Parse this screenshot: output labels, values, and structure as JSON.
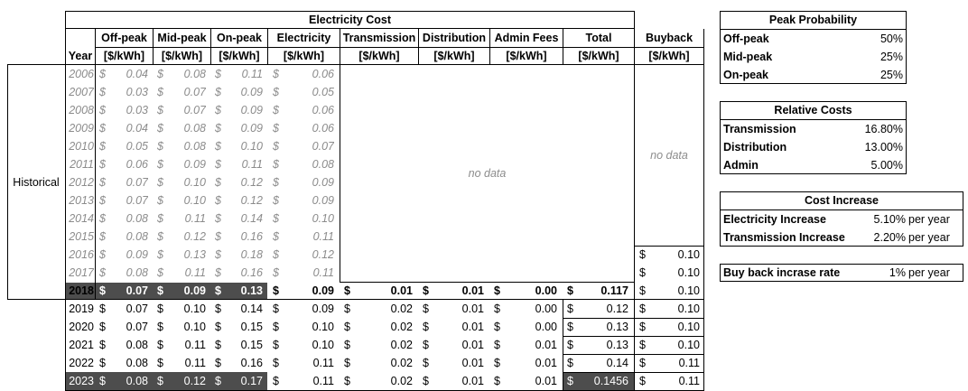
{
  "main": {
    "title": "Electricity Cost",
    "headers": {
      "year": "Year",
      "offpeak": "Off-peak",
      "midpeak": "Mid-peak",
      "onpeak": "On-peak",
      "electricity": "Electricity",
      "transmission": "Transmission",
      "distribution": "Distribution",
      "admin": "Admin Fees",
      "total": "Total",
      "buyback": "Buyback",
      "unit": "[$/kWh]"
    },
    "historical_label": "Historical",
    "no_data_label": "no data",
    "currency": "$",
    "historical_rows": [
      {
        "year": "2006",
        "off": "0.04",
        "mid": "0.08",
        "on": "0.11",
        "elec": "0.06"
      },
      {
        "year": "2007",
        "off": "0.03",
        "mid": "0.07",
        "on": "0.09",
        "elec": "0.05"
      },
      {
        "year": "2008",
        "off": "0.03",
        "mid": "0.07",
        "on": "0.09",
        "elec": "0.06"
      },
      {
        "year": "2009",
        "off": "0.04",
        "mid": "0.08",
        "on": "0.09",
        "elec": "0.06"
      },
      {
        "year": "2010",
        "off": "0.05",
        "mid": "0.08",
        "on": "0.10",
        "elec": "0.07"
      },
      {
        "year": "2011",
        "off": "0.06",
        "mid": "0.09",
        "on": "0.11",
        "elec": "0.08"
      },
      {
        "year": "2012",
        "off": "0.07",
        "mid": "0.10",
        "on": "0.12",
        "elec": "0.09"
      },
      {
        "year": "2013",
        "off": "0.07",
        "mid": "0.10",
        "on": "0.12",
        "elec": "0.09"
      },
      {
        "year": "2014",
        "off": "0.08",
        "mid": "0.11",
        "on": "0.14",
        "elec": "0.10"
      },
      {
        "year": "2015",
        "off": "0.08",
        "mid": "0.12",
        "on": "0.16",
        "elec": "0.11"
      },
      {
        "year": "2016",
        "off": "0.09",
        "mid": "0.13",
        "on": "0.18",
        "elec": "0.12",
        "buyback": "0.10"
      },
      {
        "year": "2017",
        "off": "0.08",
        "mid": "0.11",
        "on": "0.16",
        "elec": "0.11",
        "buyback": "0.10"
      }
    ],
    "current_row": {
      "year": "2018",
      "off": "0.07",
      "mid": "0.09",
      "on": "0.13",
      "elec": "0.09",
      "trans": "0.01",
      "dist": "0.01",
      "admin": "0.00",
      "total": "0.117",
      "buyback": "0.10"
    },
    "forecast_rows": [
      {
        "year": "2019",
        "off": "0.07",
        "mid": "0.10",
        "on": "0.14",
        "elec": "0.09",
        "trans": "0.02",
        "dist": "0.01",
        "admin": "0.00",
        "total": "0.12",
        "buyback": "0.10"
      },
      {
        "year": "2020",
        "off": "0.07",
        "mid": "0.10",
        "on": "0.15",
        "elec": "0.10",
        "trans": "0.02",
        "dist": "0.01",
        "admin": "0.00",
        "total": "0.13",
        "buyback": "0.10"
      },
      {
        "year": "2021",
        "off": "0.08",
        "mid": "0.11",
        "on": "0.15",
        "elec": "0.10",
        "trans": "0.02",
        "dist": "0.01",
        "admin": "0.01",
        "total": "0.13",
        "buyback": "0.10"
      },
      {
        "year": "2022",
        "off": "0.08",
        "mid": "0.11",
        "on": "0.16",
        "elec": "0.11",
        "trans": "0.02",
        "dist": "0.01",
        "admin": "0.01",
        "total": "0.14",
        "buyback": "0.11"
      },
      {
        "year": "2023",
        "off": "0.08",
        "mid": "0.12",
        "on": "0.17",
        "elec": "0.11",
        "trans": "0.02",
        "dist": "0.01",
        "admin": "0.01",
        "total": "0.1456",
        "buyback": "0.11"
      }
    ]
  },
  "peak_probability": {
    "title": "Peak Probability",
    "rows": [
      {
        "label": "Off-peak",
        "value": "50%"
      },
      {
        "label": "Mid-peak",
        "value": "25%"
      },
      {
        "label": "On-peak",
        "value": "25%"
      }
    ]
  },
  "relative_costs": {
    "title": "Relative Costs",
    "rows": [
      {
        "label": "Transmission",
        "value": "16.80%"
      },
      {
        "label": "Distribution",
        "value": "13.00%"
      },
      {
        "label": "Admin",
        "value": "5.00%"
      }
    ]
  },
  "cost_increase": {
    "title": "Cost Increase",
    "rows": [
      {
        "label": "Electricity Increase",
        "value": "5.10%",
        "unit": "per year"
      },
      {
        "label": "Transmission Increase",
        "value": "2.20%",
        "unit": "per year"
      }
    ]
  },
  "buyback_rate": {
    "label": "Buy back incrase rate",
    "value": "1%",
    "unit": "per year"
  },
  "colors": {
    "highlight_fill": "#4d4d4d",
    "historical_text": "#8c8c8c",
    "no_data_text": "#7a7a7a"
  }
}
